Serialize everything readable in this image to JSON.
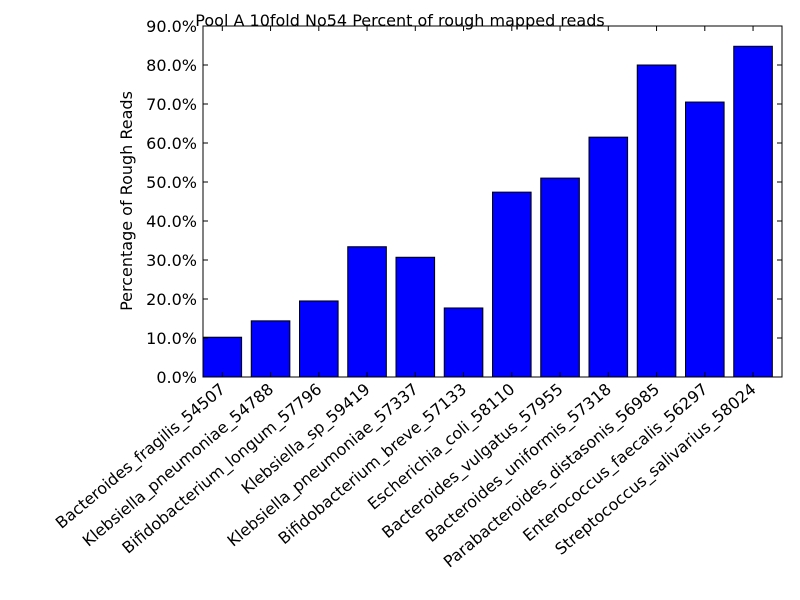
{
  "chart_data": {
    "type": "bar",
    "title": "Pool A 10fold No54 Percent of rough mapped reads",
    "xlabel": "",
    "ylabel": "Percentage of Rough Reads",
    "categories": [
      "Bacteroides_fragilis_54507",
      "Klebsiella_pneumoniae_54788",
      "Bifidobacterium_longum_57796",
      "Klebsiella_sp_59419",
      "Klebsiella_pneumoniae_57337",
      "Bifidobacterium_breve_57133",
      "Escherichia_coli_58110",
      "Bacteroides_vulgatus_57955",
      "Bacteroides_uniformis_57318",
      "Parabacteroides_distasonis_56985",
      "Enterococcus_faecalis_56297",
      "Streptococcus_salivarius_58024"
    ],
    "values": [
      10.2,
      14.4,
      19.5,
      33.4,
      30.7,
      17.7,
      47.4,
      51.0,
      61.5,
      80.0,
      70.5,
      84.8
    ],
    "ylim": [
      0,
      90
    ],
    "yticks": [
      "0.0%",
      "10.0%",
      "20.0%",
      "30.0%",
      "40.0%",
      "50.0%",
      "60.0%",
      "70.0%",
      "80.0%",
      "90.0%"
    ],
    "bar_color": "#0000ff",
    "grid": false
  }
}
